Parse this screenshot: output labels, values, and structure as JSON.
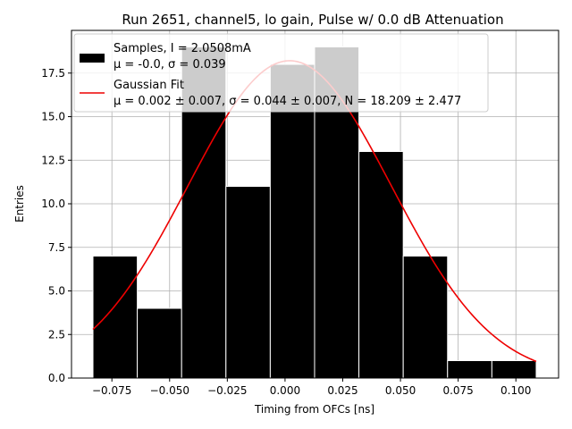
{
  "chart_data": {
    "type": "bar",
    "title": "Run 2651, channel5, lo gain, Pulse w/ 0.0 dB Attenuation",
    "xlabel": "Timing from OFCs [ns]",
    "ylabel": "Entries",
    "xlim": [
      -0.0925,
      0.1185
    ],
    "ylim": [
      0,
      19.95
    ],
    "xticks": [
      -0.075,
      -0.05,
      -0.025,
      0.0,
      0.025,
      0.05,
      0.075,
      0.1
    ],
    "xtick_labels": [
      "−0.075",
      "−0.050",
      "−0.025",
      "0.000",
      "0.025",
      "0.050",
      "0.075",
      "0.100"
    ],
    "yticks": [
      0,
      2.5,
      5,
      7.5,
      10,
      12.5,
      15,
      17.5
    ],
    "ytick_labels": [
      "0.0",
      "2.5",
      "5.0",
      "7.5",
      "10.0",
      "12.5",
      "15.0",
      "17.5"
    ],
    "grid": true,
    "legend_position": "top-left",
    "histogram": {
      "bin_edges": [
        -0.0832,
        -0.064,
        -0.0448,
        -0.0256,
        -0.0064,
        0.0128,
        0.032,
        0.0512,
        0.0704,
        0.0896,
        0.1088
      ],
      "counts": [
        7,
        4,
        19,
        11,
        18,
        19,
        13,
        7,
        1,
        1
      ],
      "color": "#000000",
      "edge_color": "#ffffff"
    },
    "fit": {
      "mu": 0.002,
      "sigma": 0.044,
      "N": 18.209,
      "color": "#ee0000"
    },
    "series": [
      {
        "name_line1": "Samples, I = 2.0508mA",
        "name_line2": "μ = -0.0, σ = 0.039"
      },
      {
        "name_line1": "Gaussian Fit",
        "name_line2": "μ = 0.002 ± 0.007, σ = 0.044 ± 0.007, N = 18.209 ± 2.477"
      }
    ]
  }
}
